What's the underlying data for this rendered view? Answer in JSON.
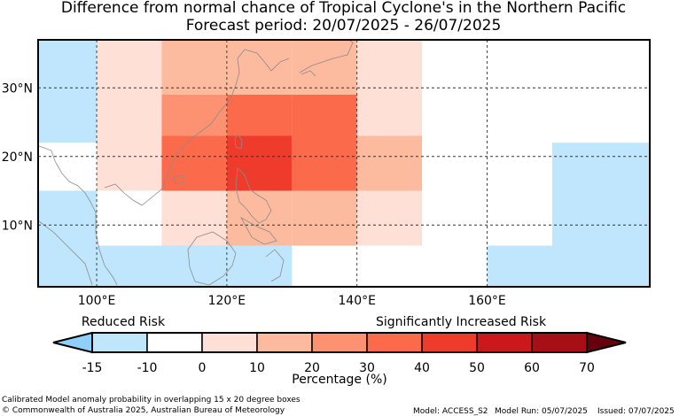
{
  "title_line1": "Difference from normal chance of Tropical Cyclone's in the Northern Pacific",
  "title_line2": "Forecast period: 20/07/2025 - 26/07/2025",
  "map": {
    "lon_ticks": [
      "100°E",
      "120°E",
      "140°E",
      "160°E"
    ],
    "lat_ticks": [
      "30°N",
      "20°N",
      "10°N"
    ],
    "colors": {
      "land_outline": "#8c8c8c",
      "gridline": "#333333"
    }
  },
  "colorbar": {
    "label_left": "Reduced Risk",
    "label_right": "Significantly Increased Risk",
    "ticks": [
      "-15",
      "-10",
      "0",
      "10",
      "20",
      "30",
      "40",
      "50",
      "60",
      "70"
    ],
    "axis_label": "Percentage (%)",
    "bin_colors": [
      "#8fd0fa",
      "#bfe6fd",
      "#ffffff",
      "#fee0d6",
      "#fcba9f",
      "#fc9272",
      "#fb6a4a",
      "#ef3b2c",
      "#cb181d",
      "#a50f15",
      "#67000d"
    ]
  },
  "chart_data": {
    "type": "heatmap",
    "description_source": "Calibrated Model anomaly probability in overlapping 15 x 20 degree boxes",
    "units": "%",
    "lon_range": [
      91,
      185
    ],
    "lat_range": [
      1,
      37
    ],
    "cells": [
      {
        "lon": [
          91,
          100
        ],
        "lat": [
          29,
          37
        ],
        "bin": "-15 to -10"
      },
      {
        "lon": [
          91,
          100
        ],
        "lat": [
          22,
          29
        ],
        "bin": "-15 to -10"
      },
      {
        "lon": [
          91,
          100
        ],
        "lat": [
          15,
          22
        ],
        "bin": "-10 to 0"
      },
      {
        "lon": [
          91,
          100
        ],
        "lat": [
          1,
          15
        ],
        "bin": "-15 to -10"
      },
      {
        "lon": [
          100,
          110
        ],
        "lat": [
          29,
          37
        ],
        "bin": "0 to 10"
      },
      {
        "lon": [
          100,
          110
        ],
        "lat": [
          15,
          29
        ],
        "bin": "0 to 10"
      },
      {
        "lon": [
          100,
          110
        ],
        "lat": [
          7,
          15
        ],
        "bin": "-10 to 0"
      },
      {
        "lon": [
          100,
          130
        ],
        "lat": [
          1,
          7
        ],
        "bin": "-15 to -10"
      },
      {
        "lon": [
          110,
          130
        ],
        "lat": [
          29,
          37
        ],
        "bin": "10 to 20"
      },
      {
        "lon": [
          110,
          120
        ],
        "lat": [
          23,
          29
        ],
        "bin": "20 to 30"
      },
      {
        "lon": [
          110,
          120
        ],
        "lat": [
          15,
          23
        ],
        "bin": "30 to 40"
      },
      {
        "lon": [
          120,
          130
        ],
        "lat": [
          23,
          29
        ],
        "bin": "30 to 40"
      },
      {
        "lon": [
          120,
          130
        ],
        "lat": [
          15,
          23
        ],
        "bin": "40 to 50"
      },
      {
        "lon": [
          110,
          120
        ],
        "lat": [
          7,
          15
        ],
        "bin": "0 to 10"
      },
      {
        "lon": [
          120,
          130
        ],
        "lat": [
          7,
          15
        ],
        "bin": "10 to 20"
      },
      {
        "lon": [
          130,
          140
        ],
        "lat": [
          29,
          37
        ],
        "bin": "10 to 20"
      },
      {
        "lon": [
          130,
          140
        ],
        "lat": [
          15,
          29
        ],
        "bin": "30 to 40"
      },
      {
        "lon": [
          130,
          140
        ],
        "lat": [
          7,
          15
        ],
        "bin": "10 to 20"
      },
      {
        "lon": [
          140,
          150
        ],
        "lat": [
          29,
          37
        ],
        "bin": "0 to 10"
      },
      {
        "lon": [
          140,
          150
        ],
        "lat": [
          23,
          29
        ],
        "bin": "0 to 10"
      },
      {
        "lon": [
          140,
          150
        ],
        "lat": [
          15,
          23
        ],
        "bin": "10 to 20"
      },
      {
        "lon": [
          140,
          150
        ],
        "lat": [
          7,
          15
        ],
        "bin": "0 to 10"
      },
      {
        "lon": [
          160,
          170
        ],
        "lat": [
          7,
          37
        ],
        "bin": "-10 to 0"
      },
      {
        "lon": [
          170,
          185
        ],
        "lat": [
          22,
          37
        ],
        "bin": "-10 to 0"
      },
      {
        "lon": [
          170,
          185
        ],
        "lat": [
          7,
          22
        ],
        "bin": "-15 to -10"
      },
      {
        "lon": [
          160,
          185
        ],
        "lat": [
          1,
          7
        ],
        "bin": "-15 to -10"
      }
    ]
  },
  "footer": {
    "line1": "Calibrated Model anomaly probability in overlapping 15 x 20 degree boxes",
    "line2": "© Commonwealth of Australia 2025, Australian Bureau of Meteorology",
    "model": "Model: ACCESS_S2",
    "model_run": "Model Run: 05/07/2025",
    "issued": "Issued: 07/07/2025"
  }
}
